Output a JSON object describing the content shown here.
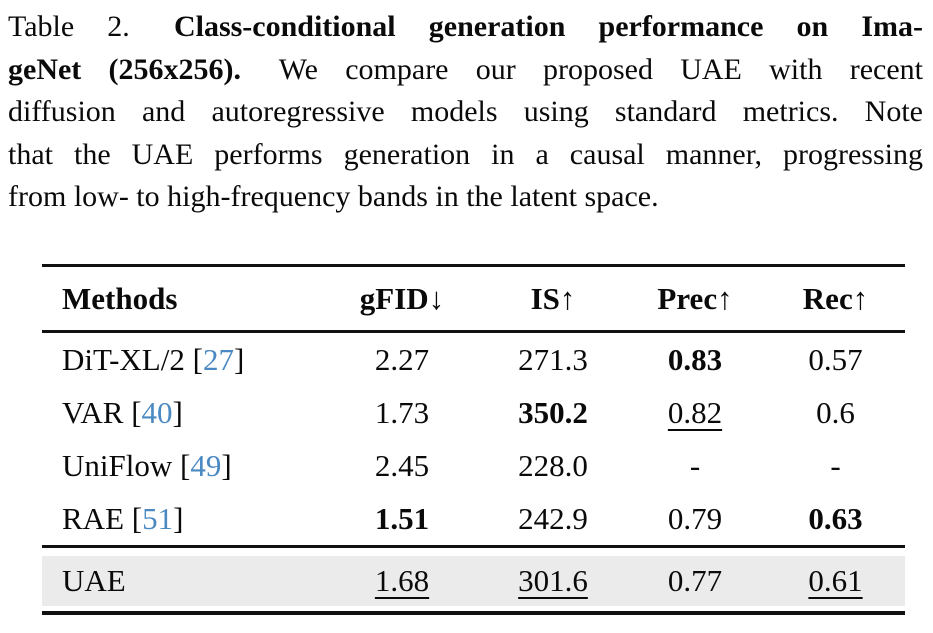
{
  "colors": {
    "citation-blue": "#4a89c2",
    "row-highlight": "#ebebeb",
    "rule": "#111111",
    "text": "#0a0a0a"
  },
  "caption": {
    "lines": [
      {
        "normal_prefix": "Table 2.",
        "bold": "Class-conditional generation performance on Ima-"
      },
      {
        "bold": "geNet (256x256).",
        "normal": "We compare our proposed UAE with recent"
      },
      {
        "normal": "diffusion and autoregressive models using standard metrics. Note"
      },
      {
        "normal": "that the UAE performs generation in a causal manner, progressing"
      },
      {
        "normal": "from low- to high-frequency bands in the latent space."
      }
    ]
  },
  "table": {
    "symbols": {
      "bracket_open": "[",
      "bracket_close": "]"
    },
    "headers": [
      {
        "label": "Methods",
        "arrow": ""
      },
      {
        "label": "gFID",
        "arrow": "↓"
      },
      {
        "label": "IS",
        "arrow": "↑"
      },
      {
        "label": "Prec",
        "arrow": "↑"
      },
      {
        "label": "Rec",
        "arrow": "↑"
      }
    ],
    "rows": [
      {
        "method": "DiT-XL/2",
        "cite": "27",
        "gfid": "2.27",
        "is": "271.3",
        "prec": "0.83",
        "rec": "0.57"
      },
      {
        "method": "VAR",
        "cite": "40",
        "gfid": "1.73",
        "is": "350.2",
        "prec": "0.82",
        "rec": "0.6"
      },
      {
        "method": "UniFlow",
        "cite": "49",
        "gfid": "2.45",
        "is": "228.0",
        "prec": "-",
        "rec": "-"
      },
      {
        "method": "RAE",
        "cite": "51",
        "gfid": "1.51",
        "is": "242.9",
        "prec": "0.79",
        "rec": "0.63"
      }
    ],
    "highlight_row": {
      "method": "UAE",
      "gfid": "1.68",
      "is": "301.6",
      "prec": "0.77",
      "rec": "0.61"
    }
  }
}
